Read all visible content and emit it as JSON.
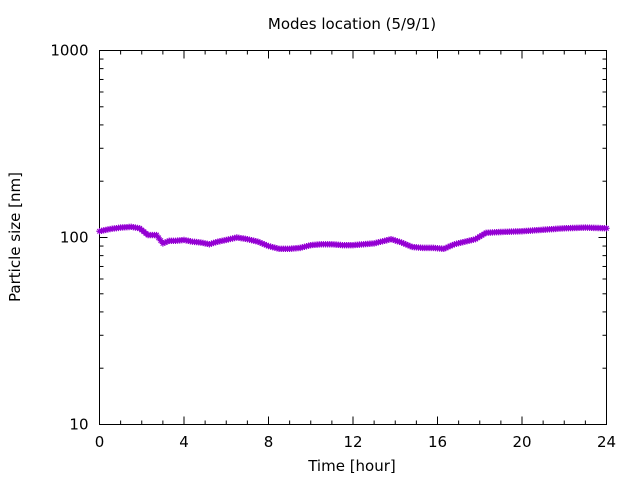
{
  "chart_data": {
    "type": "line",
    "title": "Modes location (5/9/1)",
    "xlabel": "Time [hour]",
    "ylabel": "Particle size [nm]",
    "xlim": [
      0,
      24
    ],
    "ylim": [
      10,
      1000
    ],
    "yscale": "log",
    "xticks": [
      0,
      4,
      8,
      12,
      16,
      20,
      24
    ],
    "yticks": [
      10,
      100,
      1000
    ],
    "xtick_labels": [
      "0",
      "4",
      "8",
      "12",
      "16",
      "20",
      "24"
    ],
    "ytick_labels": [
      "10",
      "100",
      "1000"
    ],
    "grid": false,
    "marker": "star",
    "series": [
      {
        "color": "#9400d3",
        "x": [
          0,
          0.5,
          1,
          1.5,
          1.9,
          2.3,
          2.7,
          3.0,
          3.3,
          3.6,
          4.0,
          4.4,
          4.8,
          5.2,
          5.6,
          6.0,
          6.5,
          7.0,
          7.5,
          8.0,
          8.5,
          9.0,
          9.5,
          10.0,
          10.5,
          11.0,
          11.5,
          12.0,
          12.5,
          13.0,
          13.5,
          13.8,
          14.3,
          14.8,
          15.3,
          15.8,
          16.3,
          16.8,
          17.3,
          17.8,
          18.3,
          19.0,
          20.0,
          21.0,
          22.0,
          23.0,
          24.0
        ],
        "y": [
          108,
          111,
          113,
          114,
          112,
          103,
          103,
          93,
          96,
          96,
          97,
          95,
          94,
          92,
          95,
          97,
          100,
          98,
          95,
          90,
          87,
          87,
          88,
          91,
          92,
          92,
          91,
          91,
          92,
          93,
          96,
          98,
          94,
          89,
          88,
          88,
          87,
          92,
          95,
          98,
          106,
          107,
          108,
          110,
          112,
          113,
          112
        ]
      }
    ]
  }
}
